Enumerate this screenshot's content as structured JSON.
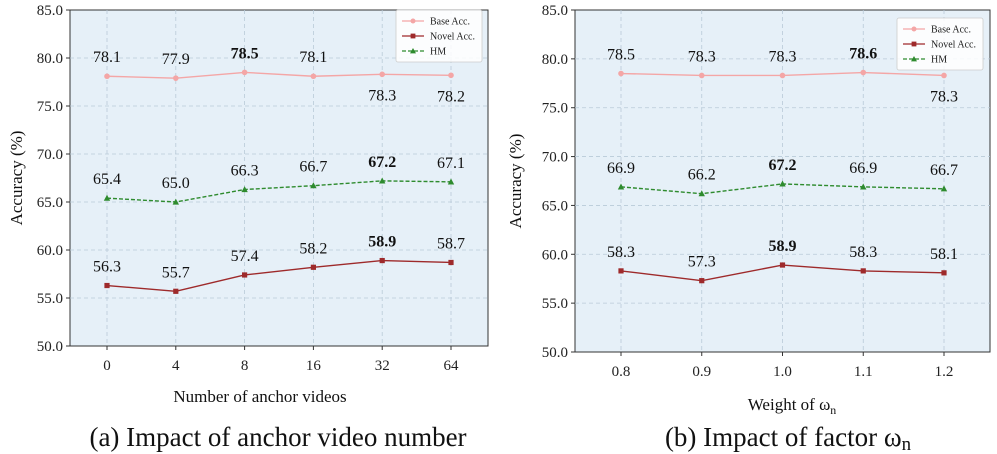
{
  "chart_data": [
    {
      "type": "line",
      "caption": "(a) Impact of anchor video number",
      "xlabel": "Number of anchor videos",
      "ylabel": "Accuracy (%)",
      "categories": [
        "0",
        "4",
        "8",
        "16",
        "32",
        "64"
      ],
      "ylim": [
        50.0,
        85.0
      ],
      "yticks": [
        "50.0",
        "55.0",
        "60.0",
        "65.0",
        "70.0",
        "75.0",
        "80.0",
        "85.0"
      ],
      "grid": true,
      "legend": "top-right",
      "series": [
        {
          "name": "Base Acc.",
          "values": [
            78.1,
            77.9,
            78.5,
            78.1,
            78.3,
            78.2
          ],
          "labels": [
            "78.1",
            "77.9",
            "78.5",
            "78.1",
            "78.3",
            "78.2"
          ],
          "bold_index": 2,
          "label_pos": [
            "above",
            "above",
            "above",
            "above",
            "below",
            "below"
          ]
        },
        {
          "name": "Novel Acc.",
          "values": [
            56.3,
            55.7,
            57.4,
            58.2,
            58.9,
            58.7
          ],
          "labels": [
            "56.3",
            "55.7",
            "57.4",
            "58.2",
            "58.9",
            "58.7"
          ],
          "bold_index": 4,
          "label_pos": [
            "above",
            "above",
            "above",
            "above",
            "above",
            "above"
          ]
        },
        {
          "name": "HM",
          "values": [
            65.4,
            65.0,
            66.3,
            66.7,
            67.2,
            67.1
          ],
          "labels": [
            "65.4",
            "65.0",
            "66.3",
            "66.7",
            "67.2",
            "67.1"
          ],
          "bold_index": 4,
          "label_pos": [
            "above",
            "above",
            "above",
            "above",
            "above",
            "above"
          ]
        }
      ]
    },
    {
      "type": "line",
      "caption": "(b) Impact of factor ωn",
      "xlabel": "Weight of ωn",
      "ylabel": "Accuracy (%)",
      "categories": [
        "0.8",
        "0.9",
        "1.0",
        "1.1",
        "1.2"
      ],
      "ylim": [
        50.0,
        85.0
      ],
      "yticks": [
        "50.0",
        "55.0",
        "60.0",
        "65.0",
        "70.0",
        "75.0",
        "80.0",
        "85.0"
      ],
      "grid": true,
      "legend": "top-right",
      "series": [
        {
          "name": "Base Acc.",
          "values": [
            78.5,
            78.3,
            78.3,
            78.6,
            78.3
          ],
          "labels": [
            "78.5",
            "78.3",
            "78.3",
            "78.6",
            "78.3"
          ],
          "bold_index": 3,
          "label_pos": [
            "above",
            "above",
            "above",
            "above",
            "below"
          ]
        },
        {
          "name": "Novel Acc.",
          "values": [
            58.3,
            57.3,
            58.9,
            58.3,
            58.1
          ],
          "labels": [
            "58.3",
            "57.3",
            "58.9",
            "58.3",
            "58.1"
          ],
          "bold_index": 2,
          "label_pos": [
            "above",
            "above",
            "above",
            "above",
            "above"
          ]
        },
        {
          "name": "HM",
          "values": [
            66.9,
            66.2,
            67.2,
            66.9,
            66.7
          ],
          "labels": [
            "66.9",
            "66.2",
            "67.2",
            "66.9",
            "66.7"
          ],
          "bold_index": 2,
          "label_pos": [
            "above",
            "above",
            "above",
            "above",
            "above"
          ]
        }
      ]
    }
  ],
  "colors": {
    "base": "#f4a6a6",
    "novel": "#9e2a2b",
    "hm": "#2e8b2e",
    "plot_bg": "#e6f0f8",
    "grid": "#b9cad8"
  }
}
